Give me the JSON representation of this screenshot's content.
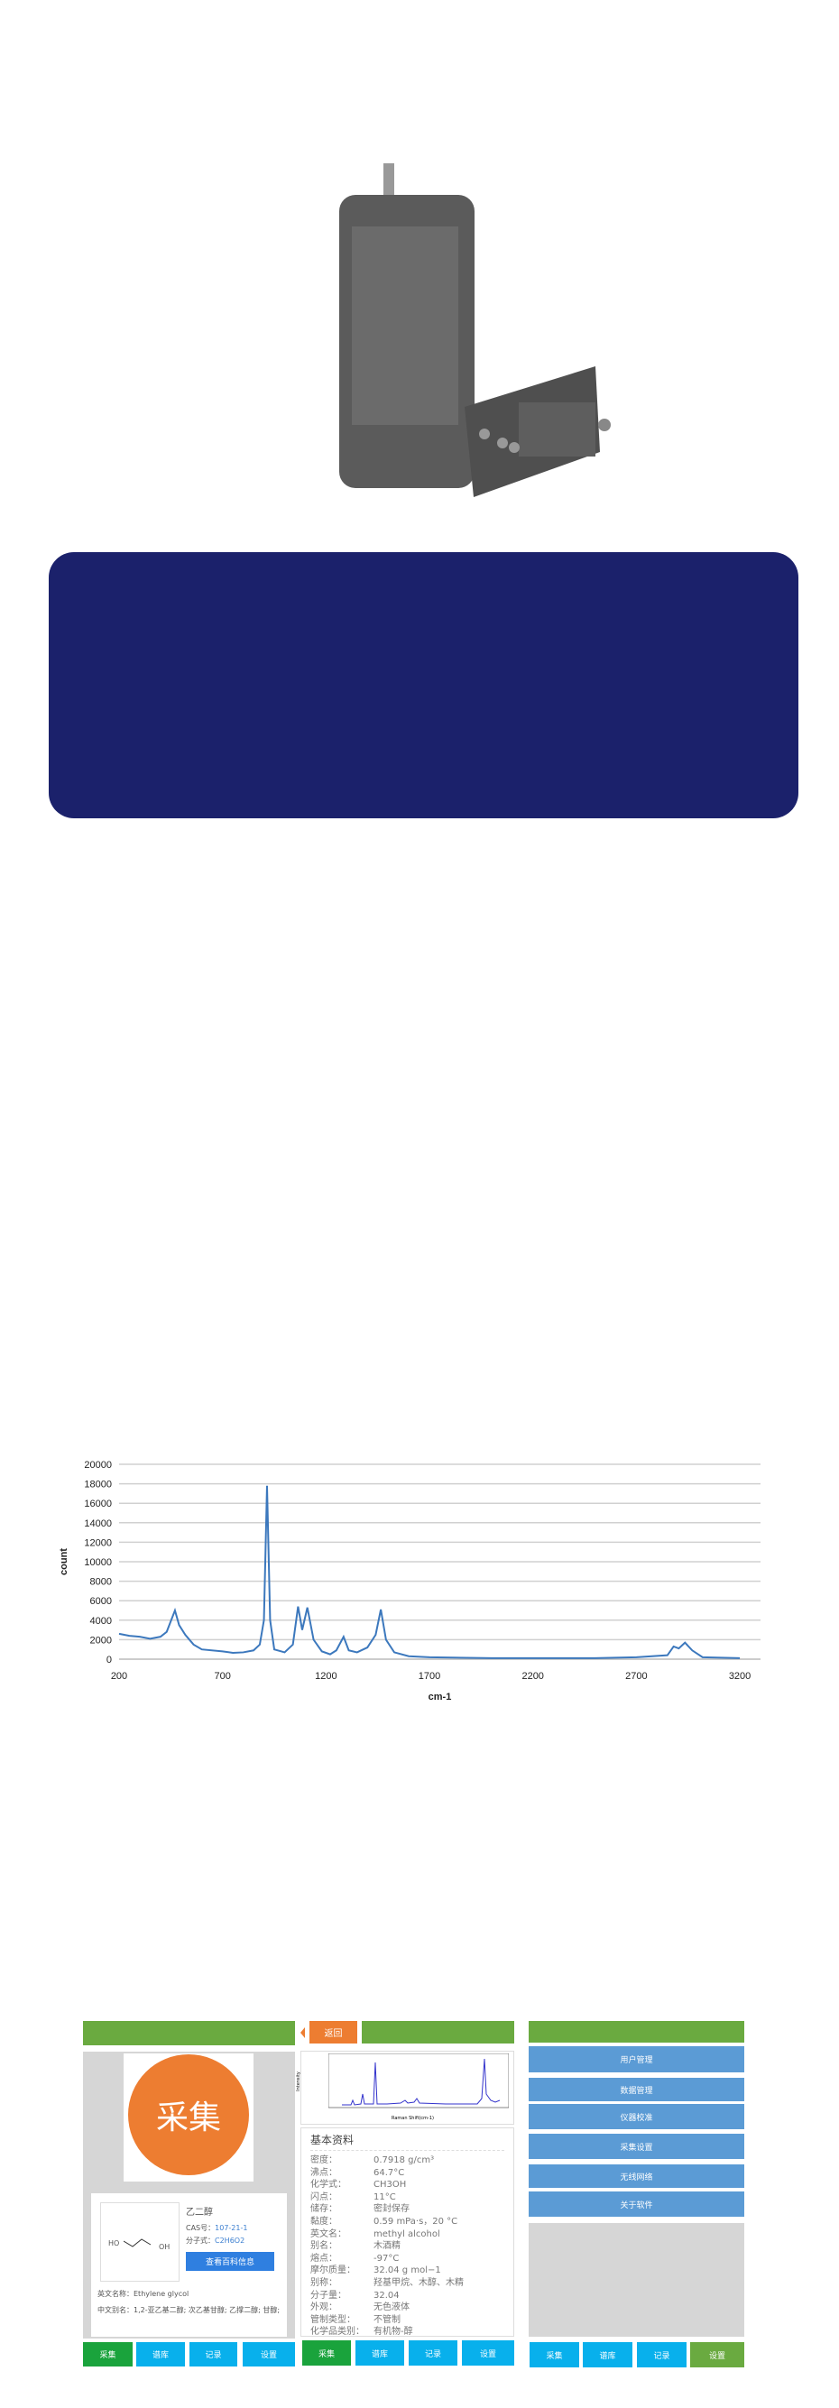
{
  "colors": {
    "navy": "#1b216b",
    "green": "#6aaa40",
    "tab_active": "#1aa33c",
    "tab_blue": "#08b0ec",
    "menu_blue": "#5b9bd5",
    "orange": "#ed7d31",
    "line": "#3c78bd"
  },
  "chart_data": {
    "type": "line",
    "xlabel": "cm-1",
    "ylabel": "count",
    "xlim": [
      200,
      3300
    ],
    "ylim": [
      0,
      20000
    ],
    "x_ticks": [
      "200",
      "700",
      "1200",
      "1700",
      "2200",
      "2700",
      "3200"
    ],
    "y_ticks": [
      "0",
      "2000",
      "4000",
      "6000",
      "8000",
      "10000",
      "12000",
      "14000",
      "16000",
      "18000",
      "20000"
    ],
    "grid": "horizontal",
    "series": [
      {
        "points": [
          [
            200,
            2600
          ],
          [
            250,
            2400
          ],
          [
            300,
            2300
          ],
          [
            350,
            2100
          ],
          [
            400,
            2300
          ],
          [
            430,
            2800
          ],
          [
            470,
            5000
          ],
          [
            490,
            3500
          ],
          [
            520,
            2500
          ],
          [
            560,
            1500
          ],
          [
            600,
            1000
          ],
          [
            700,
            800
          ],
          [
            750,
            650
          ],
          [
            800,
            700
          ],
          [
            850,
            900
          ],
          [
            880,
            1500
          ],
          [
            900,
            4000
          ],
          [
            915,
            17800
          ],
          [
            930,
            4000
          ],
          [
            950,
            1000
          ],
          [
            1000,
            700
          ],
          [
            1040,
            1500
          ],
          [
            1065,
            5400
          ],
          [
            1085,
            3000
          ],
          [
            1110,
            5300
          ],
          [
            1140,
            2000
          ],
          [
            1180,
            800
          ],
          [
            1220,
            500
          ],
          [
            1250,
            900
          ],
          [
            1285,
            2300
          ],
          [
            1310,
            900
          ],
          [
            1350,
            700
          ],
          [
            1400,
            1200
          ],
          [
            1440,
            2500
          ],
          [
            1465,
            5100
          ],
          [
            1490,
            2000
          ],
          [
            1530,
            700
          ],
          [
            1600,
            300
          ],
          [
            1700,
            200
          ],
          [
            2000,
            100
          ],
          [
            2500,
            100
          ],
          [
            2700,
            200
          ],
          [
            2850,
            400
          ],
          [
            2880,
            1300
          ],
          [
            2905,
            1100
          ],
          [
            2935,
            1700
          ],
          [
            2970,
            900
          ],
          [
            3020,
            200
          ],
          [
            3200,
            100
          ]
        ]
      }
    ]
  },
  "screen1": {
    "collect_label": "采集",
    "compound_name": "乙二醇",
    "cas_label": "CAS号：",
    "cas_value": "107-21-1",
    "formula_label": "分子式：",
    "formula_value": "C2H6O2",
    "baike_button": "查看百科信息",
    "english_label": "英文名称：",
    "english_value": "Ethylene glycol",
    "alias_label": "中文别名：",
    "alias_value": "1,2-亚乙基二醇; 次乙基甘醇; 乙撑二醇; 甘醇;",
    "structure_left": "HO",
    "structure_right": "OH"
  },
  "screen2": {
    "back_label": "返回",
    "spectrum_ylabel": "Intensity",
    "spectrum_xlabel": "Raman Shift(cm-1)",
    "section_title": "基本资料",
    "rows": [
      {
        "k": "密度：",
        "v": "0.7918 g/cm³"
      },
      {
        "k": "沸点：",
        "v": "64.7°C"
      },
      {
        "k": "化学式：",
        "v": "CH3OH"
      },
      {
        "k": "闪点：",
        "v": "11°C"
      },
      {
        "k": "储存：",
        "v": "密封保存"
      },
      {
        "k": "黏度：",
        "v": "0.59 mPa·s，20 °C"
      },
      {
        "k": "英文名：",
        "v": "methyl alcohol"
      },
      {
        "k": "别名：",
        "v": "木酒精"
      },
      {
        "k": "熔点：",
        "v": "-97°C"
      },
      {
        "k": "摩尔质量：",
        "v": "32.04 g mol−1"
      },
      {
        "k": "别称：",
        "v": "羟基甲烷、木醇、木精"
      },
      {
        "k": "分子量：",
        "v": "32.04"
      },
      {
        "k": "外观：",
        "v": "无色液体"
      },
      {
        "k": "管制类型：",
        "v": "不管制"
      },
      {
        "k": "化学品类别：",
        "v": "有机物-醇"
      }
    ]
  },
  "screen3": {
    "menu": [
      "用户管理",
      "数据管理",
      "仪器校准",
      "采集设置",
      "无线网络",
      "关于软件"
    ]
  },
  "tabs": [
    "采集",
    "谱库",
    "记录",
    "设置"
  ]
}
